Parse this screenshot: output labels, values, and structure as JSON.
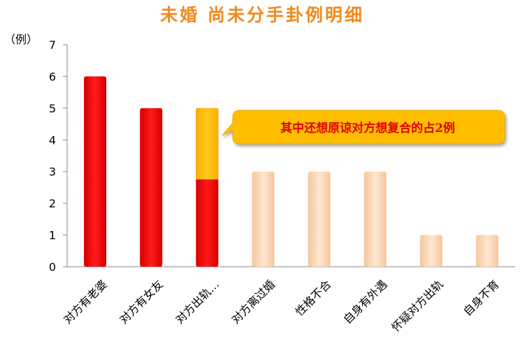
{
  "chart_data": {
    "type": "bar",
    "title": "未婚  尚未分手卦例明细",
    "ylabel": "（例）",
    "xlabel": "",
    "ylim": [
      0,
      7
    ],
    "yticks": [
      0,
      1,
      2,
      3,
      4,
      5,
      6,
      7
    ],
    "categories": [
      "对方有老婆",
      "对方有女友",
      "对方出轨…",
      "对方离过婚",
      "性格不合",
      "自身有外遇",
      "怀疑对方出轨",
      "自身不育"
    ],
    "values": [
      6,
      5,
      5,
      3,
      3,
      3,
      1,
      1
    ],
    "highlight": {
      "category": "对方出轨…",
      "value": 2.25
    },
    "colors": {
      "primary": "#ff0000",
      "secondary": "#fcd9b5",
      "highlight": "#ffbf00",
      "title": "#f08a1c",
      "callout_text": "#e00000"
    },
    "bar_color_keys": [
      "primary",
      "primary",
      "primary",
      "secondary",
      "secondary",
      "secondary",
      "secondary",
      "secondary"
    ],
    "annotation": "其中还想原谅对方想复合的占2例",
    "grid": false,
    "legend": "none"
  }
}
